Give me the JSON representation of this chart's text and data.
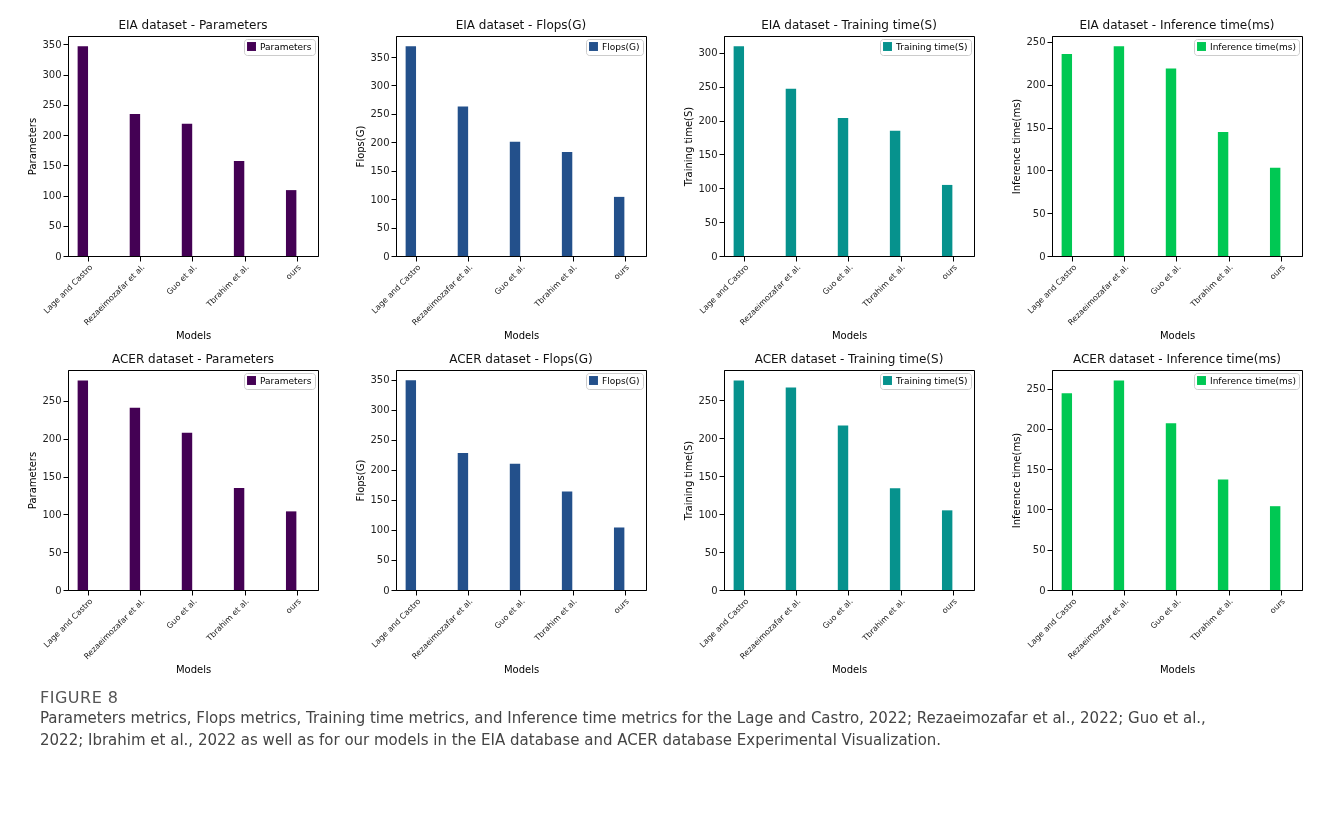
{
  "chart_data": [
    {
      "type": "bar",
      "title": "EIA dataset - Parameters",
      "xlabel": "Models",
      "ylabel": "Parameters",
      "categories": [
        "Lage and Castro",
        "Rezaeimozafar et al.",
        "Guo et al.",
        "Tbrahim et al.",
        "ours"
      ],
      "series": [
        {
          "name": "Parameters",
          "color": "#440154",
          "values": [
            347,
            235,
            219,
            157,
            109
          ]
        }
      ],
      "ylim": [
        0,
        364
      ],
      "yticks": [
        0,
        50,
        100,
        150,
        200,
        250,
        300,
        350
      ],
      "legend": "top right"
    },
    {
      "type": "bar",
      "title": "EIA dataset - Flops(G)",
      "xlabel": "Models",
      "ylabel": "Flops(G)",
      "categories": [
        "Lage and Castro",
        "Rezaeimozafar et al.",
        "Guo et al.",
        "Tbrahim et al.",
        "ours"
      ],
      "series": [
        {
          "name": "Flops(G)",
          "color": "#23508b",
          "values": [
            369,
            263,
            201,
            183,
            104
          ]
        }
      ],
      "ylim": [
        0,
        387
      ],
      "yticks": [
        0,
        50,
        100,
        150,
        200,
        250,
        300,
        350
      ],
      "legend": "top right"
    },
    {
      "type": "bar",
      "title": "EIA dataset - Training time(S)",
      "xlabel": "Models",
      "ylabel": "Training time(S)",
      "categories": [
        "Lage and Castro",
        "Rezaeimozafar et al.",
        "Guo et al.",
        "Tbrahim et al.",
        "ours"
      ],
      "series": [
        {
          "name": "Training time(S)",
          "color": "#06928d",
          "values": [
            310,
            247,
            204,
            185,
            105
          ]
        }
      ],
      "ylim": [
        0,
        325
      ],
      "yticks": [
        0,
        50,
        100,
        150,
        200,
        250,
        300
      ],
      "legend": "top right"
    },
    {
      "type": "bar",
      "title": "EIA dataset - Inference time(ms)",
      "xlabel": "Models",
      "ylabel": "Inference time(ms)",
      "categories": [
        "Lage and Castro",
        "Rezaeimozafar et al.",
        "Guo et al.",
        "Tbrahim et al.",
        "ours"
      ],
      "series": [
        {
          "name": "Inference time(ms)",
          "color": "#00c853",
          "values": [
            236,
            245,
            219,
            145,
            103
          ]
        }
      ],
      "ylim": [
        0,
        257
      ],
      "yticks": [
        0,
        50,
        100,
        150,
        200,
        250
      ],
      "legend": "top right"
    },
    {
      "type": "bar",
      "title": "ACER dataset - Parameters",
      "xlabel": "Models",
      "ylabel": "Parameters",
      "categories": [
        "Lage and Castro",
        "Rezaeimozafar et al.",
        "Guo et al.",
        "Tbrahim et al.",
        "ours"
      ],
      "series": [
        {
          "name": "Parameters",
          "color": "#440154",
          "values": [
            277,
            241,
            208,
            135,
            104
          ]
        }
      ],
      "ylim": [
        0,
        291
      ],
      "yticks": [
        0,
        50,
        100,
        150,
        200,
        250
      ],
      "legend": "top right"
    },
    {
      "type": "bar",
      "title": "ACER dataset - Flops(G)",
      "xlabel": "Models",
      "ylabel": "Flops(G)",
      "categories": [
        "Lage and Castro",
        "Rezaeimozafar et al.",
        "Guo et al.",
        "Tbrahim et al.",
        "ours"
      ],
      "series": [
        {
          "name": "Flops(G)",
          "color": "#23508b",
          "values": [
            349,
            228,
            210,
            164,
            104
          ]
        }
      ],
      "ylim": [
        0,
        366
      ],
      "yticks": [
        0,
        50,
        100,
        150,
        200,
        250,
        300,
        350
      ],
      "legend": "top right"
    },
    {
      "type": "bar",
      "title": "ACER dataset - Training time(S)",
      "xlabel": "Models",
      "ylabel": "Training time(S)",
      "categories": [
        "Lage and Castro",
        "Rezaeimozafar et al.",
        "Guo et al.",
        "Tbrahim et al.",
        "ours"
      ],
      "series": [
        {
          "name": "Training time(S)",
          "color": "#06928d",
          "values": [
            276,
            267,
            217,
            134,
            105
          ]
        }
      ],
      "ylim": [
        0,
        290
      ],
      "yticks": [
        0,
        50,
        100,
        150,
        200,
        250
      ],
      "legend": "top right"
    },
    {
      "type": "bar",
      "title": "ACER dataset - Inference time(ms)",
      "xlabel": "Models",
      "ylabel": "Inference time(ms)",
      "categories": [
        "Lage and Castro",
        "Rezaeimozafar et al.",
        "Guo et al.",
        "Tbrahim et al.",
        "ours"
      ],
      "series": [
        {
          "name": "Inference time(ms)",
          "color": "#00c853",
          "values": [
            244,
            260,
            207,
            137,
            104
          ]
        }
      ],
      "ylim": [
        0,
        273
      ],
      "yticks": [
        0,
        50,
        100,
        150,
        200,
        250
      ],
      "legend": "top right",
      "annotations": [
        "FIGURE 8",
        "Parameters metrics, Flops metrics, Training time metrics, and Inference time metrics for the Lage and Castro, 2022; Rezaeimozafar et al., 2022; Guo et al., 2022; Ibrahim et al., 2022 as well as for our models in the EIA database and ACER database Experimental Visualization."
      ]
    }
  ]
}
